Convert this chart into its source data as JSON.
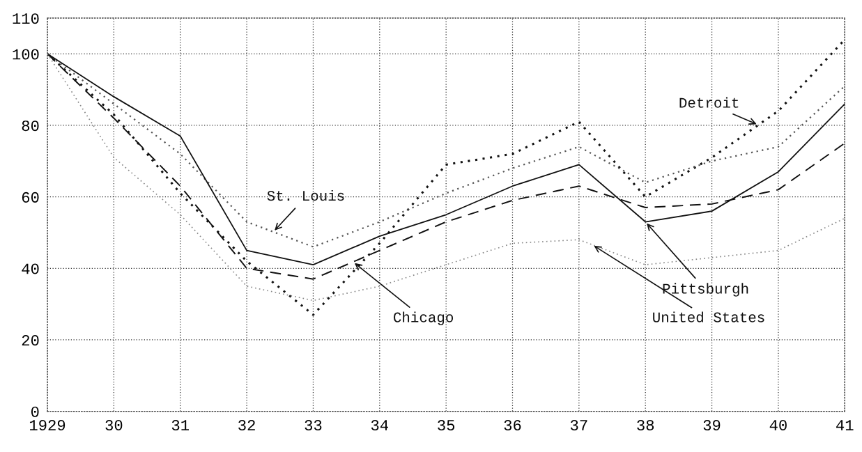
{
  "chart_data": {
    "type": "line",
    "x": [
      1929,
      1930,
      1931,
      1932,
      1933,
      1934,
      1935,
      1936,
      1937,
      1938,
      1939,
      1940,
      1941
    ],
    "xlim": [
      1929,
      1941
    ],
    "xticks": [
      {
        "value": 1929,
        "label": "1929"
      },
      {
        "value": 1930,
        "label": "30"
      },
      {
        "value": 1931,
        "label": "31"
      },
      {
        "value": 1932,
        "label": "32"
      },
      {
        "value": 1933,
        "label": "33"
      },
      {
        "value": 1934,
        "label": "34"
      },
      {
        "value": 1935,
        "label": "35"
      },
      {
        "value": 1936,
        "label": "36"
      },
      {
        "value": 1937,
        "label": "37"
      },
      {
        "value": 1938,
        "label": "38"
      },
      {
        "value": 1939,
        "label": "39"
      },
      {
        "value": 1940,
        "label": "40"
      },
      {
        "value": 1941,
        "label": "41"
      }
    ],
    "ylim": [
      0,
      110
    ],
    "yticks": [
      0,
      20,
      40,
      60,
      80,
      100,
      110
    ],
    "grid": true,
    "legend": false,
    "series": [
      {
        "name": "Detroit",
        "color": "#111111",
        "line_style": "dotted",
        "values": [
          100,
          83,
          61,
          42,
          27,
          47,
          69,
          72,
          81,
          60,
          71,
          84,
          104
        ]
      },
      {
        "name": "St. Louis",
        "color": "#555555",
        "line_style": "dotted",
        "values": [
          100,
          86,
          72,
          53,
          46,
          53,
          61,
          68,
          74,
          64,
          70,
          74,
          91
        ]
      },
      {
        "name": "Pittsburgh",
        "color": "#111111",
        "line_style": "solid",
        "values": [
          100,
          88,
          77,
          45,
          41,
          49,
          55,
          63,
          69,
          53,
          56,
          67,
          86
        ]
      },
      {
        "name": "Chicago",
        "color": "#111111",
        "line_style": "dashed",
        "values": [
          100,
          82,
          63,
          40,
          37,
          45,
          53,
          59,
          63,
          57,
          58,
          62,
          75
        ]
      },
      {
        "name": "United States",
        "color": "#888888",
        "line_style": "dotted",
        "values": [
          100,
          71,
          55,
          35,
          31,
          35,
          41,
          47,
          48,
          41,
          43,
          45,
          54
        ]
      }
    ]
  }
}
